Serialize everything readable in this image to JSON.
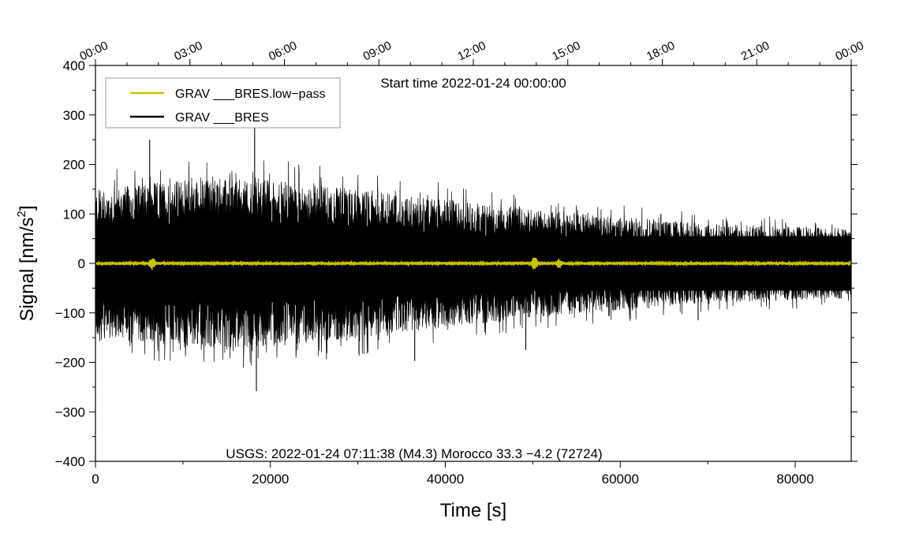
{
  "chart_data": {
    "type": "line",
    "title": "Start time 2022-01-24 00:00:00",
    "xlabel": "Time [s]",
    "ylabel": "Signal [nm/s",
    "ylabel_sup": "2",
    "ylabel_end": "]",
    "xlim": [
      0,
      86400
    ],
    "ylim": [
      -400,
      400
    ],
    "x_ticks": [
      0,
      20000,
      40000,
      60000,
      80000
    ],
    "x_tick_labels": [
      "0",
      "20000",
      "40000",
      "60000",
      "80000"
    ],
    "x_minor_step": 10000,
    "y_ticks": [
      -400,
      -300,
      -200,
      -100,
      0,
      100,
      200,
      300,
      400
    ],
    "y_tick_labels": [
      "−400",
      "−300",
      "−200",
      "−100",
      "0",
      "100",
      "200",
      "300",
      "400"
    ],
    "y_minor_step": 50,
    "top_axis": {
      "tick_seconds": [
        0,
        10800,
        21600,
        32400,
        43200,
        54000,
        64800,
        75600,
        86400
      ],
      "labels": [
        "00:00",
        "03:00",
        "06:00",
        "09:00",
        "12:00",
        "15:00",
        "18:00",
        "21:00",
        "00:00"
      ]
    },
    "annotation": "USGS: 2022-01-24 07:11:38 (M4.3) Morocco 33.3 −4.2 (72724)",
    "legend": {
      "position": "top-left",
      "entries": [
        {
          "label": "GRAV ___BRES.low−pass",
          "color": "#c9c200"
        },
        {
          "label": "GRAV ___BRES",
          "color": "#000000"
        }
      ]
    },
    "series": [
      {
        "name": "GRAV ___BRES",
        "color": "#000000",
        "envelope": {
          "x": [
            0,
            10000,
            20000,
            30000,
            40000,
            50000,
            60000,
            70000,
            80000,
            86400
          ],
          "upper": [
            150,
            170,
            170,
            150,
            130,
            110,
            95,
            80,
            75,
            70
          ],
          "lower": [
            -150,
            -170,
            -170,
            -150,
            -130,
            -110,
            -95,
            -80,
            -75,
            -70
          ]
        },
        "peaks": [
          {
            "x": 6200,
            "y": 250
          },
          {
            "x": 18200,
            "y": 280
          },
          {
            "x": 18400,
            "y": -258
          },
          {
            "x": 36500,
            "y": -197
          },
          {
            "x": 49200,
            "y": -175
          },
          {
            "x": 68900,
            "y": -115
          }
        ]
      },
      {
        "name": "GRAV ___BRES.low−pass",
        "color": "#c9c200",
        "baseline": 0,
        "noise_amplitude": 3,
        "bursts": [
          {
            "x": 6500,
            "amplitude": 12
          },
          {
            "x": 50200,
            "amplitude": 15
          },
          {
            "x": 53000,
            "amplitude": 10
          }
        ]
      }
    ]
  }
}
